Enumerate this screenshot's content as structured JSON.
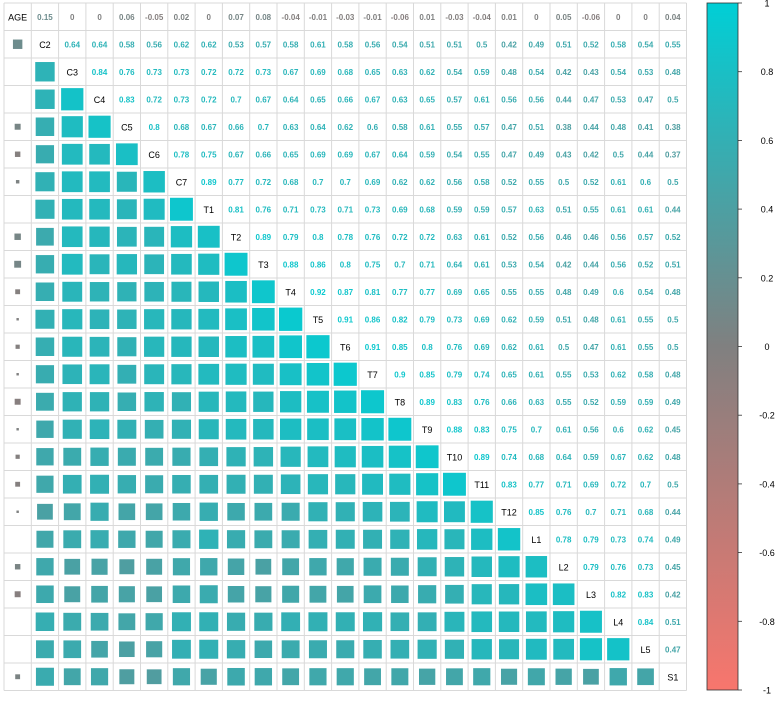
{
  "chart_data": {
    "type": "heatmap",
    "variables": [
      "AGE",
      "C2",
      "C3",
      "C4",
      "C5",
      "C6",
      "C7",
      "T1",
      "T2",
      "T3",
      "T4",
      "T5",
      "T6",
      "T7",
      "T8",
      "T9",
      "T10",
      "T11",
      "T12",
      "L1",
      "L2",
      "L3",
      "L4",
      "L5",
      "S1"
    ],
    "upper_values": [
      [
        0.15,
        0,
        0,
        0.06,
        -0.05,
        0.02,
        0,
        0.07,
        0.08,
        -0.04,
        -0.01,
        -0.03,
        -0.01,
        -0.06,
        0.01,
        -0.03,
        -0.04,
        0.01,
        0,
        0.05,
        -0.06,
        0,
        0,
        0.04
      ],
      [
        0.64,
        0.64,
        0.58,
        0.56,
        0.62,
        0.62,
        0.53,
        0.57,
        0.58,
        0.61,
        0.58,
        0.56,
        0.54,
        0.51,
        0.51,
        0.5,
        0.42,
        0.49,
        0.51,
        0.52,
        0.58,
        0.54,
        0.55
      ],
      [
        0.84,
        0.76,
        0.73,
        0.73,
        0.72,
        0.72,
        0.73,
        0.67,
        0.69,
        0.68,
        0.65,
        0.63,
        0.62,
        0.54,
        0.59,
        0.48,
        0.54,
        0.42,
        0.43,
        0.54,
        0.53,
        0.48
      ],
      [
        0.83,
        0.72,
        0.73,
        0.72,
        0.7,
        0.67,
        0.64,
        0.65,
        0.66,
        0.67,
        0.63,
        0.65,
        0.57,
        0.61,
        0.56,
        0.56,
        0.44,
        0.47,
        0.53,
        0.47,
        0.5
      ],
      [
        0.8,
        0.68,
        0.67,
        0.66,
        0.7,
        0.63,
        0.64,
        0.62,
        0.6,
        0.58,
        0.61,
        0.55,
        0.57,
        0.47,
        0.51,
        0.38,
        0.44,
        0.48,
        0.41,
        0.38
      ],
      [
        0.78,
        0.75,
        0.67,
        0.66,
        0.65,
        0.69,
        0.69,
        0.67,
        0.64,
        0.59,
        0.54,
        0.55,
        0.47,
        0.49,
        0.43,
        0.42,
        0.5,
        0.44,
        0.37
      ],
      [
        0.89,
        0.77,
        0.72,
        0.68,
        0.7,
        0.7,
        0.69,
        0.62,
        0.62,
        0.56,
        0.58,
        0.52,
        0.55,
        0.5,
        0.52,
        0.61,
        0.6,
        0.5
      ],
      [
        0.81,
        0.76,
        0.71,
        0.73,
        0.71,
        0.73,
        0.69,
        0.68,
        0.59,
        0.59,
        0.57,
        0.63,
        0.51,
        0.55,
        0.61,
        0.61,
        0.44
      ],
      [
        0.89,
        0.79,
        0.8,
        0.78,
        0.76,
        0.72,
        0.72,
        0.63,
        0.61,
        0.52,
        0.56,
        0.46,
        0.46,
        0.56,
        0.57,
        0.52
      ],
      [
        0.88,
        0.86,
        0.8,
        0.75,
        0.7,
        0.71,
        0.64,
        0.61,
        0.53,
        0.54,
        0.42,
        0.44,
        0.56,
        0.52,
        0.51
      ],
      [
        0.92,
        0.87,
        0.81,
        0.77,
        0.77,
        0.69,
        0.65,
        0.55,
        0.55,
        0.48,
        0.49,
        0.6,
        0.54,
        0.48
      ],
      [
        0.91,
        0.86,
        0.82,
        0.79,
        0.73,
        0.69,
        0.62,
        0.59,
        0.51,
        0.48,
        0.61,
        0.55,
        0.5
      ],
      [
        0.91,
        0.85,
        0.8,
        0.76,
        0.69,
        0.62,
        0.61,
        0.5,
        0.47,
        0.61,
        0.55,
        0.5
      ],
      [
        0.9,
        0.85,
        0.79,
        0.74,
        0.65,
        0.61,
        0.55,
        0.53,
        0.62,
        0.58,
        0.48
      ],
      [
        0.89,
        0.83,
        0.76,
        0.66,
        0.63,
        0.55,
        0.52,
        0.59,
        0.59,
        0.49
      ],
      [
        0.88,
        0.83,
        0.75,
        0.7,
        0.61,
        0.56,
        0.6,
        0.62,
        0.45
      ],
      [
        0.89,
        0.74,
        0.68,
        0.64,
        0.59,
        0.67,
        0.62,
        0.48
      ],
      [
        0.83,
        0.77,
        0.71,
        0.69,
        0.72,
        0.7,
        0.5
      ],
      [
        0.85,
        0.76,
        0.7,
        0.71,
        0.68,
        0.44
      ],
      [
        0.78,
        0.79,
        0.73,
        0.74,
        0.49
      ],
      [
        0.79,
        0.76,
        0.73,
        0.45
      ],
      [
        0.82,
        0.83,
        0.42
      ],
      [
        0.84,
        0.51
      ],
      [
        0.47
      ],
      []
    ],
    "colorbar": {
      "range": [
        -1,
        1
      ],
      "ticks": [
        "1",
        "0.8",
        "0.6",
        "0.4",
        "0.2",
        "0",
        "-0.2",
        "-0.4",
        "-0.6",
        "-0.8",
        "-1"
      ],
      "color_negative": "#F8766D",
      "color_zero": "#808080",
      "color_positive": "#00CFD6"
    },
    "lower_triangle": "squares sized by |correlation|",
    "diagonal": "variable names",
    "upper_triangle": "correlation values"
  }
}
